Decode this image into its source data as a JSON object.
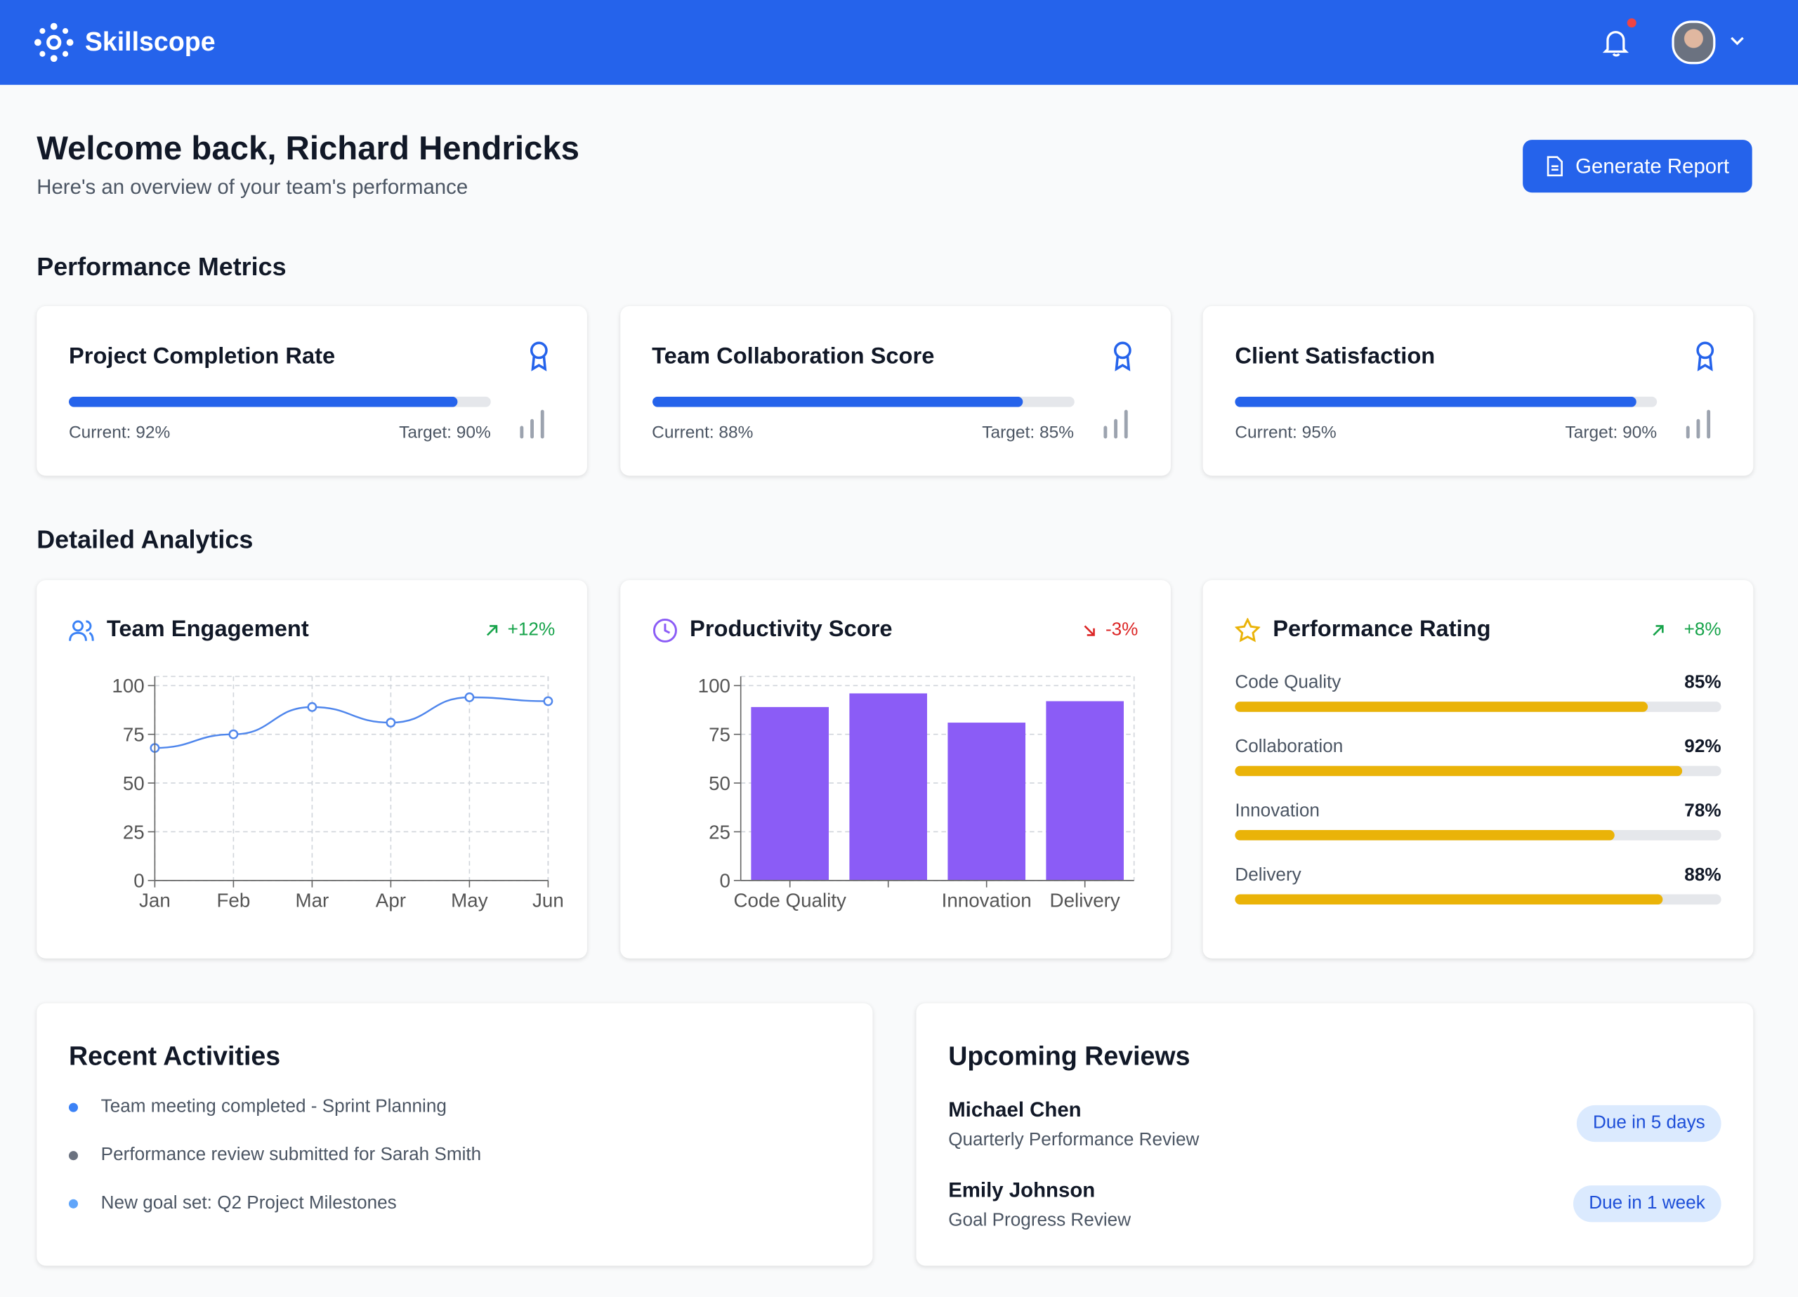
{
  "header": {
    "brand": "Skillscope"
  },
  "welcome": {
    "title": "Welcome back, Richard Hendricks",
    "subtitle": "Here's an overview of your team's performance",
    "button": "Generate Report"
  },
  "metrics": {
    "heading": "Performance Metrics",
    "items": [
      {
        "title": "Project Completion Rate",
        "current": 92,
        "current_label": "Current: 92%",
        "target_label": "Target: 90%"
      },
      {
        "title": "Team Collaboration Score",
        "current": 88,
        "current_label": "Current: 88%",
        "target_label": "Target: 85%"
      },
      {
        "title": "Client Satisfaction",
        "current": 95,
        "current_label": "Current: 95%",
        "target_label": "Target: 90%"
      }
    ]
  },
  "analytics_heading": "Detailed Analytics",
  "chart_data": [
    {
      "type": "line",
      "title": "Team Engagement",
      "change": "+12%",
      "categories": [
        "Jan",
        "Feb",
        "Mar",
        "Apr",
        "May",
        "Jun"
      ],
      "values": [
        68,
        75,
        89,
        81,
        94,
        92
      ],
      "color": "#4f86ec",
      "ylim": [
        0,
        100
      ],
      "yticks": [
        0,
        25,
        50,
        75,
        100
      ],
      "grid": true
    },
    {
      "type": "bar",
      "title": "Productivity Score",
      "change": "-3%",
      "categories": [
        "Code Quality",
        null,
        "Innovation",
        "Delivery"
      ],
      "values": [
        89,
        96,
        81,
        92
      ],
      "color": "#8b5cf6",
      "ylim": [
        0,
        100
      ],
      "yticks": [
        0,
        25,
        50,
        75,
        100
      ],
      "grid": true
    }
  ],
  "rating": {
    "title": "Performance Rating",
    "change": "+8%",
    "items": [
      {
        "label": "Code Quality",
        "value": 85,
        "value_label": "85%"
      },
      {
        "label": "Collaboration",
        "value": 92,
        "value_label": "92%"
      },
      {
        "label": "Innovation",
        "value": 78,
        "value_label": "78%"
      },
      {
        "label": "Delivery",
        "value": 88,
        "value_label": "88%"
      }
    ]
  },
  "activities": {
    "title": "Recent Activities",
    "items": [
      "Team meeting completed - Sprint Planning",
      "Performance review submitted for Sarah Smith",
      "New goal set: Q2 Project Milestones"
    ]
  },
  "reviews": {
    "title": "Upcoming Reviews",
    "items": [
      {
        "name": "Michael Chen",
        "type": "Quarterly Performance Review",
        "due": "Due in 5 days"
      },
      {
        "name": "Emily Johnson",
        "type": "Goal Progress Review",
        "due": "Due in 1 week"
      }
    ]
  }
}
